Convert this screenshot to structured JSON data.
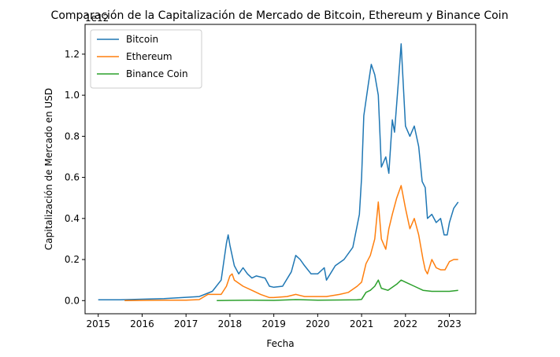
{
  "chart_data": {
    "type": "line",
    "title": "Comparación de la Capitalización de Mercado de Bitcoin, Ethereum y Binance Coin",
    "xlabel": "Fecha",
    "ylabel": "Capitalización de Mercado en USD",
    "y_offset_label": "1e12",
    "xlim": [
      2014.7,
      2023.6
    ],
    "ylim": [
      -0.064,
      1.345
    ],
    "x_ticks": [
      2015,
      2016,
      2017,
      2018,
      2019,
      2020,
      2021,
      2022,
      2023
    ],
    "x_tick_labels": [
      "2015",
      "2016",
      "2017",
      "2018",
      "2019",
      "2020",
      "2021",
      "2022",
      "2023"
    ],
    "y_ticks": [
      0.0,
      0.2,
      0.4,
      0.6,
      0.8,
      1.0,
      1.2
    ],
    "y_tick_labels": [
      "0.0",
      "0.2",
      "0.4",
      "0.6",
      "0.8",
      "1.0",
      "1.2"
    ],
    "legend_position": "top-left",
    "grid": false,
    "series": [
      {
        "name": "Bitcoin",
        "color": "#1f77b4",
        "x": [
          2015.0,
          2015.5,
          2016.0,
          2016.5,
          2017.0,
          2017.3,
          2017.6,
          2017.8,
          2017.92,
          2017.96,
          2018.0,
          2018.1,
          2018.2,
          2018.3,
          2018.4,
          2018.5,
          2018.6,
          2018.8,
          2018.9,
          2019.0,
          2019.2,
          2019.4,
          2019.5,
          2019.6,
          2019.7,
          2019.85,
          2020.0,
          2020.15,
          2020.2,
          2020.4,
          2020.6,
          2020.8,
          2020.95,
          2021.0,
          2021.05,
          2021.15,
          2021.22,
          2021.3,
          2021.38,
          2021.45,
          2021.55,
          2021.62,
          2021.7,
          2021.75,
          2021.85,
          2021.9,
          2022.0,
          2022.1,
          2022.2,
          2022.3,
          2022.38,
          2022.45,
          2022.5,
          2022.6,
          2022.7,
          2022.8,
          2022.88,
          2022.95,
          2023.0,
          2023.1,
          2023.2
        ],
        "y": [
          0.004,
          0.004,
          0.007,
          0.01,
          0.016,
          0.02,
          0.045,
          0.1,
          0.28,
          0.32,
          0.27,
          0.17,
          0.13,
          0.16,
          0.13,
          0.11,
          0.12,
          0.11,
          0.07,
          0.065,
          0.07,
          0.14,
          0.22,
          0.2,
          0.17,
          0.13,
          0.13,
          0.16,
          0.1,
          0.17,
          0.2,
          0.26,
          0.42,
          0.6,
          0.9,
          1.05,
          1.15,
          1.1,
          1.0,
          0.65,
          0.7,
          0.62,
          0.88,
          0.82,
          1.1,
          1.25,
          0.85,
          0.8,
          0.85,
          0.75,
          0.58,
          0.55,
          0.4,
          0.42,
          0.38,
          0.4,
          0.32,
          0.32,
          0.38,
          0.45,
          0.48
        ]
      },
      {
        "name": "Ethereum",
        "color": "#ff7f0e",
        "x": [
          2015.6,
          2016.0,
          2016.5,
          2017.0,
          2017.3,
          2017.5,
          2017.8,
          2017.92,
          2018.0,
          2018.05,
          2018.1,
          2018.3,
          2018.5,
          2018.7,
          2018.9,
          2019.0,
          2019.3,
          2019.5,
          2019.7,
          2019.9,
          2020.0,
          2020.2,
          2020.5,
          2020.7,
          2020.9,
          2021.0,
          2021.1,
          2021.2,
          2021.3,
          2021.38,
          2021.45,
          2021.55,
          2021.62,
          2021.7,
          2021.8,
          2021.9,
          2022.0,
          2022.1,
          2022.2,
          2022.3,
          2022.4,
          2022.45,
          2022.5,
          2022.6,
          2022.7,
          2022.8,
          2022.9,
          2023.0,
          2023.1,
          2023.2
        ],
        "y": [
          0.0,
          0.001,
          0.002,
          0.002,
          0.005,
          0.03,
          0.03,
          0.07,
          0.12,
          0.13,
          0.1,
          0.07,
          0.05,
          0.03,
          0.015,
          0.015,
          0.02,
          0.03,
          0.02,
          0.02,
          0.02,
          0.02,
          0.03,
          0.04,
          0.07,
          0.09,
          0.18,
          0.22,
          0.3,
          0.48,
          0.3,
          0.25,
          0.35,
          0.42,
          0.5,
          0.56,
          0.45,
          0.35,
          0.4,
          0.32,
          0.2,
          0.15,
          0.13,
          0.2,
          0.16,
          0.15,
          0.15,
          0.19,
          0.2,
          0.2
        ]
      },
      {
        "name": "Binance Coin",
        "color": "#2ca02c",
        "x": [
          2017.7,
          2018.0,
          2018.5,
          2019.0,
          2019.5,
          2020.0,
          2020.5,
          2020.9,
          2021.0,
          2021.1,
          2021.2,
          2021.3,
          2021.38,
          2021.45,
          2021.6,
          2021.8,
          2021.9,
          2022.0,
          2022.2,
          2022.4,
          2022.6,
          2022.8,
          2023.0,
          2023.2
        ],
        "y": [
          0.0,
          0.001,
          0.002,
          0.001,
          0.005,
          0.002,
          0.003,
          0.004,
          0.006,
          0.04,
          0.05,
          0.07,
          0.1,
          0.06,
          0.05,
          0.08,
          0.1,
          0.09,
          0.07,
          0.05,
          0.045,
          0.045,
          0.045,
          0.05
        ]
      }
    ]
  }
}
